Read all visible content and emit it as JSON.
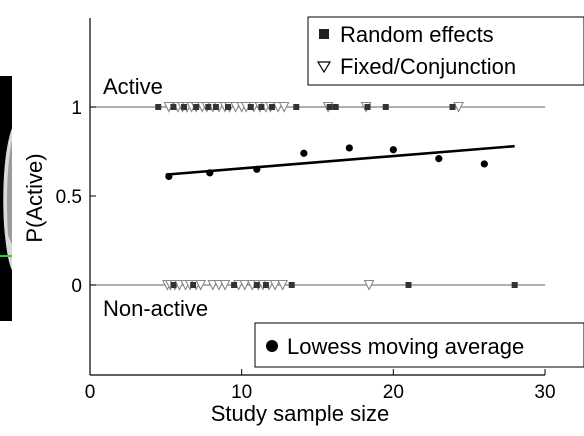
{
  "chart_data": {
    "type": "scatter",
    "xlabel": "Study sample size",
    "ylabel": "P(Active)",
    "xlim": [
      0,
      30
    ],
    "ylim": [
      -0.5,
      1.5
    ],
    "x_ticks": [
      "0",
      "10",
      "20",
      "30"
    ],
    "y_ticks": [
      "0",
      "0.5",
      "1"
    ],
    "annotations": {
      "active": "Active",
      "non_active": "Non-active"
    },
    "legend": {
      "random": "Random effects",
      "fixed": "Fixed/Conjunction",
      "lowess": "Lowess moving average"
    },
    "series": [
      {
        "name": "Random effects",
        "marker": "square",
        "color": "#333333",
        "active_x": [
          4.5,
          5.5,
          6.2,
          7.0,
          7.8,
          8.3,
          9.1,
          10.6,
          11.3,
          12.0,
          13.6,
          15.8,
          16.2,
          18.3,
          19.5,
          23.9
        ],
        "nonactive_x": [
          5.5,
          6.8,
          9.5,
          11.0,
          11.6,
          13.3,
          21.0,
          28.0
        ]
      },
      {
        "name": "Fixed/Conjunction",
        "marker": "triangle-down",
        "color": "#888888",
        "active_x": [
          5.2,
          5.8,
          6.1,
          6.4,
          6.7,
          7.0,
          7.4,
          7.7,
          8.1,
          8.5,
          8.9,
          9.2,
          9.6,
          10.0,
          10.3,
          10.8,
          11.2,
          11.6,
          11.9,
          12.4,
          12.8,
          15.7,
          18.2,
          24.3
        ],
        "nonactive_x": [
          5.1,
          5.3,
          5.6,
          5.9,
          6.3,
          6.6,
          7.0,
          7.3,
          8.1,
          8.5,
          8.9,
          9.8,
          10.2,
          10.7,
          11.1,
          11.4,
          11.8,
          12.2,
          12.7,
          18.4
        ]
      },
      {
        "name": "Lowess moving average",
        "marker": "circle",
        "color": "#000000",
        "x": [
          5.2,
          7.9,
          11.0,
          14.1,
          17.1,
          20.0,
          23.0,
          26.0
        ],
        "y": [
          0.61,
          0.63,
          0.65,
          0.74,
          0.77,
          0.76,
          0.71,
          0.68
        ]
      }
    ],
    "fit_line": {
      "x": [
        5,
        28
      ],
      "y": [
        0.62,
        0.78
      ]
    }
  }
}
